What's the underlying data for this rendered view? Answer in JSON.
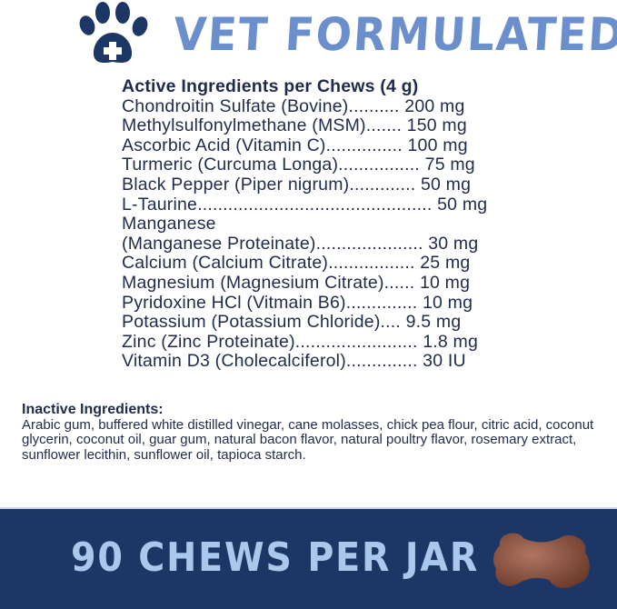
{
  "header": {
    "title": "VET FORMULATED",
    "logo_icon": "paw-with-medical-cross-icon",
    "logo_color": "#1c3766",
    "title_color": "#6a8fcc"
  },
  "active": {
    "heading": "Active Ingredients per Chews (4 g)",
    "lines": [
      "Chondroitin Sulfate (Bovine).......... 200 mg",
      "Methylsulfonylmethane (MSM)....... 150 mg",
      "Ascorbic Acid (Vitamin C)............... 100 mg",
      "Turmeric (Curcuma Longa)................ 75 mg",
      "Black Pepper (Piper nigrum)............. 50 mg",
      "L-Taurine.............................................. 50 mg",
      "Manganese",
      "(Manganese Proteinate)..................... 30 mg",
      "Calcium (Calcium Citrate)................. 25 mg",
      "Magnesium (Magnesium Citrate)...... 10 mg",
      "Pyridoxine HCl (Vitmain B6).............. 10 mg",
      "Potassium (Potassium Chloride).... 9.5 mg",
      "Zinc (Zinc Proteinate)........................ 1.8 mg",
      "Vitamin D3 (Cholecalciferol).............. 30 IU"
    ]
  },
  "inactive": {
    "heading": "Inactive Ingredients:",
    "text": "Arabic gum, buffered white distilled vinegar, cane molasses, chick pea flour, citric acid, coconut glycerin, coconut oil, guar gum, natural bacon flavor, natural poultry flavor, rosemary extract, sunflower lecithin, sunflower oil, tapioca starch."
  },
  "banner": {
    "text": "90 CHEWS PER JAR",
    "background": "#1c3766",
    "text_color": "#a9c9ec",
    "image_icon": "bone-shaped-chew-icon"
  }
}
